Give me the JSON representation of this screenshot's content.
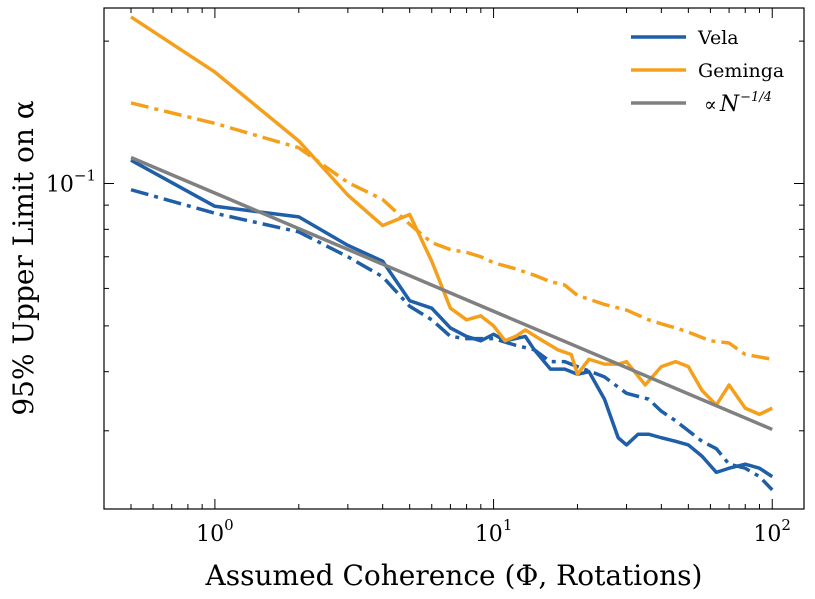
{
  "chart_data": {
    "type": "line",
    "title": "",
    "xlabel": "Assumed Coherence (Φ, Rotations)",
    "ylabel": "95% Upper Limit on α",
    "xscale": "log",
    "yscale": "log",
    "xlim": [
      0.4,
      130
    ],
    "ylim": [
      0.0205,
      0.235
    ],
    "grid": false,
    "legend_position": "top-right",
    "x_ticks": [
      {
        "value": 1,
        "base": "10",
        "exp": "0"
      },
      {
        "value": 10,
        "base": "10",
        "exp": "1"
      },
      {
        "value": 100,
        "base": "10",
        "exp": "2"
      }
    ],
    "y_ticks": [
      {
        "value": 0.1,
        "base": "10",
        "exp": "−1"
      }
    ],
    "legend": [
      {
        "label": "Vela",
        "color": "#1f5fa8",
        "style": "solid"
      },
      {
        "label": "Geminga",
        "color": "#f5a01c",
        "style": "solid"
      },
      {
        "label_symbol": "∝",
        "label_var": "N",
        "label_exp": "−1/4",
        "color": "#808080",
        "style": "solid"
      }
    ],
    "series": [
      {
        "name": "Vela",
        "color": "#1f5fa8",
        "dash": "solid",
        "x": [
          0.5,
          1,
          2,
          3,
          4,
          5,
          6,
          7,
          8,
          9,
          10,
          11,
          12,
          13,
          14,
          16,
          18,
          20,
          22,
          25,
          28,
          30,
          33,
          36,
          40,
          45,
          50,
          56,
          63,
          70,
          80,
          90,
          100
        ],
        "y": [
          0.112,
          0.0895,
          0.085,
          0.074,
          0.0685,
          0.0565,
          0.0545,
          0.0495,
          0.0475,
          0.0465,
          0.048,
          0.0465,
          0.047,
          0.0475,
          0.0445,
          0.0405,
          0.0405,
          0.0395,
          0.04,
          0.035,
          0.029,
          0.028,
          0.0295,
          0.0295,
          0.029,
          0.0285,
          0.028,
          0.0265,
          0.0245,
          0.025,
          0.0255,
          0.025,
          0.024
        ]
      },
      {
        "name": "Vela (dash-dot)",
        "color": "#1f5fa8",
        "dash": "dashdot",
        "x": [
          0.5,
          1,
          2,
          3,
          4,
          5,
          6,
          7,
          8,
          9,
          10,
          12,
          14,
          16,
          18,
          20,
          25,
          30,
          36,
          40,
          45,
          50,
          56,
          63,
          70,
          80,
          90,
          100
        ],
        "y": [
          0.097,
          0.0865,
          0.079,
          0.07,
          0.0635,
          0.055,
          0.0515,
          0.0475,
          0.047,
          0.047,
          0.047,
          0.0455,
          0.0445,
          0.042,
          0.042,
          0.041,
          0.039,
          0.036,
          0.035,
          0.033,
          0.0315,
          0.03,
          0.0285,
          0.0275,
          0.0255,
          0.025,
          0.024,
          0.0225
        ]
      },
      {
        "name": "Geminga",
        "color": "#f5a01c",
        "dash": "solid",
        "x": [
          0.5,
          1,
          2,
          3,
          4,
          5,
          6,
          7,
          8,
          9,
          10,
          11,
          12,
          13,
          15,
          17,
          19,
          20,
          22,
          25,
          28,
          30,
          35,
          40,
          45,
          50,
          56,
          63,
          70,
          80,
          90,
          100
        ],
        "y": [
          0.225,
          0.172,
          0.123,
          0.0945,
          0.0815,
          0.086,
          0.0685,
          0.0545,
          0.0515,
          0.0525,
          0.05,
          0.0465,
          0.0475,
          0.049,
          0.0465,
          0.0445,
          0.0435,
          0.0395,
          0.0425,
          0.0415,
          0.0415,
          0.042,
          0.0375,
          0.041,
          0.042,
          0.041,
          0.0365,
          0.034,
          0.0375,
          0.0335,
          0.0325,
          0.0335
        ]
      },
      {
        "name": "Geminga (dash-dot)",
        "color": "#f5a01c",
        "dash": "dashdot",
        "x": [
          0.5,
          1,
          2,
          3,
          4,
          5,
          6,
          7,
          8,
          9,
          10,
          12,
          14,
          16,
          18,
          20,
          25,
          30,
          36,
          40,
          45,
          50,
          60,
          70,
          80,
          100
        ],
        "y": [
          0.148,
          0.134,
          0.119,
          0.1005,
          0.0925,
          0.082,
          0.075,
          0.0725,
          0.0715,
          0.07,
          0.068,
          0.066,
          0.064,
          0.062,
          0.061,
          0.058,
          0.0555,
          0.054,
          0.0515,
          0.0505,
          0.0495,
          0.0485,
          0.0465,
          0.046,
          0.0435,
          0.0425
        ]
      },
      {
        "name": "∝ N^(−1/4)",
        "color": "#808080",
        "dash": "solid",
        "x": [
          0.5,
          100
        ],
        "y": [
          0.1135,
          0.0302
        ]
      }
    ]
  }
}
